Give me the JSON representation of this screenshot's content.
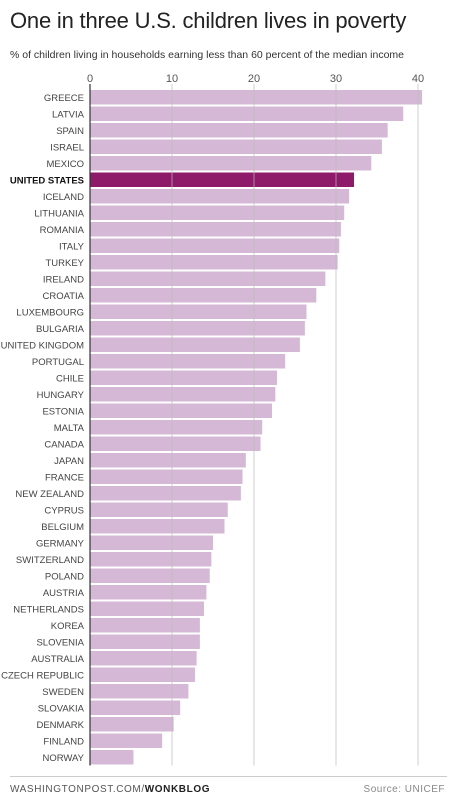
{
  "title": "One in three U.S. children lives in poverty",
  "subtitle": "% of children living in households earning less than 60 percent of the median income",
  "footer": {
    "site": "WASHINGTONPOST.COM/",
    "blog": "WONKBLOG",
    "source": "Source: UNICEF"
  },
  "colors": {
    "bar": "#d5b8d5",
    "highlight": "#8e1a6a",
    "grid": "#bbbbbb",
    "text": "#444444"
  },
  "chart_data": {
    "type": "bar",
    "orientation": "horizontal",
    "xlim": [
      0,
      42
    ],
    "ticks": [
      0,
      10,
      20,
      30,
      40
    ],
    "highlight": "UNITED STATES",
    "categories": [
      "GREECE",
      "LATVIA",
      "SPAIN",
      "ISRAEL",
      "MEXICO",
      "UNITED STATES",
      "ICELAND",
      "LITHUANIA",
      "ROMANIA",
      "ITALY",
      "TURKEY",
      "IRELAND",
      "CROATIA",
      "LUXEMBOURG",
      "BULGARIA",
      "UNITED KINGDOM",
      "PORTUGAL",
      "CHILE",
      "HUNGARY",
      "ESTONIA",
      "MALTA",
      "CANADA",
      "JAPAN",
      "FRANCE",
      "NEW ZEALAND",
      "CYPRUS",
      "BELGIUM",
      "GERMANY",
      "SWITZERLAND",
      "POLAND",
      "AUSTRIA",
      "NETHERLANDS",
      "KOREA",
      "SLOVENIA",
      "AUSTRALIA",
      "CZECH REPUBLIC",
      "SWEDEN",
      "SLOVAKIA",
      "DENMARK",
      "FINLAND",
      "NORWAY"
    ],
    "values": [
      40.5,
      38.2,
      36.3,
      35.6,
      34.3,
      32.2,
      31.6,
      31.0,
      30.6,
      30.4,
      30.2,
      28.7,
      27.6,
      26.4,
      26.2,
      25.6,
      23.8,
      22.8,
      22.6,
      22.2,
      21.0,
      20.8,
      19.0,
      18.6,
      18.4,
      16.8,
      16.4,
      15.0,
      14.8,
      14.6,
      14.2,
      13.9,
      13.4,
      13.4,
      13.0,
      12.8,
      12.0,
      11.0,
      10.2,
      8.8,
      5.3
    ]
  }
}
